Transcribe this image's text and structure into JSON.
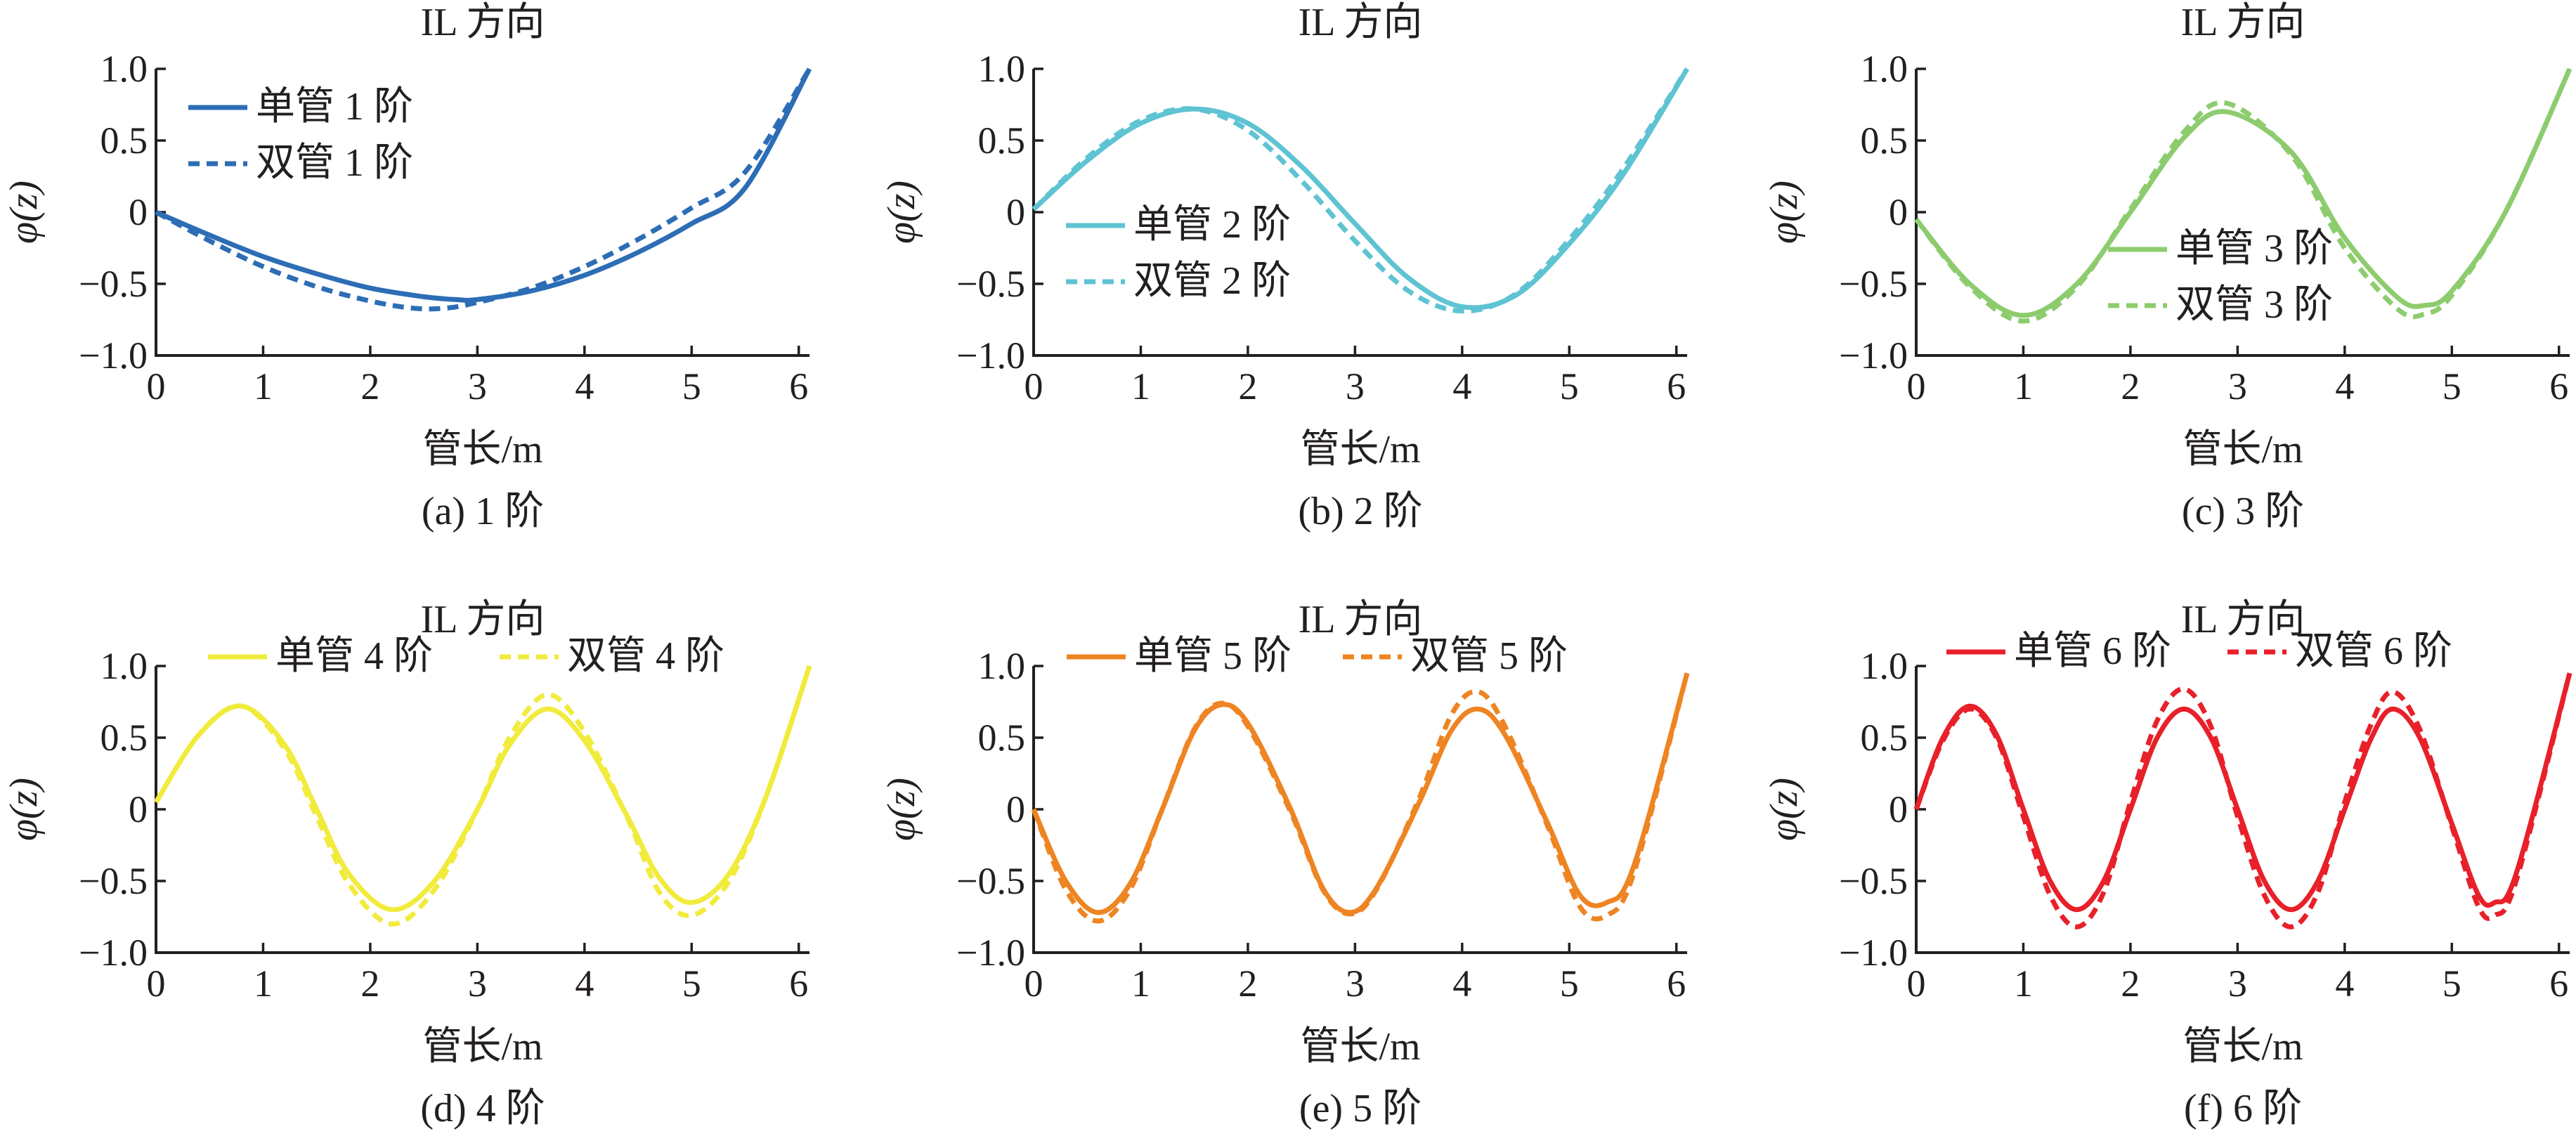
{
  "chart_data": [
    {
      "type": "line",
      "panel": "a",
      "title": "IL 方向",
      "xlabel": "管长/m",
      "ylabel": "φ(z)",
      "caption": "(a) 1 阶",
      "xlim": [
        0,
        6.1
      ],
      "ylim": [
        -1.0,
        1.0
      ],
      "xticks": [
        "0",
        "1",
        "2",
        "3",
        "4",
        "5",
        "6"
      ],
      "yticks": [
        "1.0",
        "0.5",
        "0",
        "−0.5",
        "−1.0"
      ],
      "color": "#2c6db5",
      "legend": "top-left",
      "series": [
        {
          "name": "单管 1 阶",
          "style": "solid",
          "x": [
            0,
            0.5,
            1.0,
            1.5,
            2.0,
            2.5,
            2.8,
            3.0,
            3.5,
            4.0,
            4.5,
            5.0,
            5.5,
            6.1
          ],
          "y": [
            0,
            -0.16,
            -0.31,
            -0.43,
            -0.53,
            -0.59,
            -0.61,
            -0.61,
            -0.55,
            -0.44,
            -0.28,
            -0.08,
            0.17,
            1.0
          ]
        },
        {
          "name": "双管 1 阶",
          "style": "dashed",
          "x": [
            0,
            0.5,
            1.0,
            1.5,
            2.0,
            2.4,
            2.7,
            3.0,
            3.5,
            4.0,
            4.5,
            5.0,
            5.5,
            6.1
          ],
          "y": [
            0,
            -0.2,
            -0.38,
            -0.52,
            -0.62,
            -0.67,
            -0.67,
            -0.63,
            -0.53,
            -0.38,
            -0.19,
            0.03,
            0.28,
            1.0
          ]
        }
      ]
    },
    {
      "type": "line",
      "panel": "b",
      "title": "IL 方向",
      "xlabel": "管长/m",
      "ylabel": "φ(z)",
      "caption": "(b) 2 阶",
      "xlim": [
        0,
        6.1
      ],
      "ylim": [
        -1.0,
        1.0
      ],
      "xticks": [
        "0",
        "1",
        "2",
        "3",
        "4",
        "5",
        "6"
      ],
      "yticks": [
        "1.0",
        "0.5",
        "0",
        "−0.5",
        "−1.0"
      ],
      "color": "#5ec3d2",
      "legend": "center-left",
      "series": [
        {
          "name": "单管 2 阶",
          "style": "solid",
          "x": [
            0,
            0.5,
            1.0,
            1.5,
            2.0,
            2.5,
            3.0,
            3.5,
            4.0,
            4.5,
            5.0,
            5.5,
            6.1
          ],
          "y": [
            0.02,
            0.36,
            0.62,
            0.72,
            0.62,
            0.32,
            -0.08,
            -0.46,
            -0.66,
            -0.58,
            -0.22,
            0.26,
            1.0
          ]
        },
        {
          "name": "双管 2 阶",
          "style": "dashed",
          "x": [
            0,
            0.5,
            1.0,
            1.5,
            2.0,
            2.5,
            3.0,
            3.5,
            4.0,
            4.5,
            5.0,
            5.5,
            6.1
          ],
          "y": [
            0.02,
            0.38,
            0.64,
            0.72,
            0.57,
            0.22,
            -0.2,
            -0.55,
            -0.69,
            -0.57,
            -0.19,
            0.3,
            1.0
          ]
        }
      ]
    },
    {
      "type": "line",
      "panel": "c",
      "title": "IL 方向",
      "xlabel": "管长/m",
      "ylabel": "φ(z)",
      "caption": "(c) 3 阶",
      "xlim": [
        0,
        6.1
      ],
      "ylim": [
        -1.0,
        1.0
      ],
      "xticks": [
        "0",
        "1",
        "2",
        "3",
        "4",
        "5",
        "6"
      ],
      "yticks": [
        "1.0",
        "0.5",
        "0",
        "−0.5",
        "−1.0"
      ],
      "color": "#8dcc6e",
      "legend": "center",
      "series": [
        {
          "name": "单管 3 阶",
          "style": "solid",
          "x": [
            0,
            0.5,
            1.0,
            1.5,
            2.0,
            2.5,
            2.9,
            3.5,
            4.0,
            4.5,
            4.75,
            5.0,
            5.5,
            6.1
          ],
          "y": [
            -0.05,
            -0.5,
            -0.72,
            -0.5,
            0.0,
            0.52,
            0.7,
            0.42,
            -0.18,
            -0.6,
            -0.65,
            -0.55,
            0.0,
            1.0
          ]
        },
        {
          "name": "双管 3 阶",
          "style": "dashed",
          "x": [
            0,
            0.5,
            1.0,
            1.5,
            2.0,
            2.5,
            2.9,
            3.5,
            4.0,
            4.5,
            4.75,
            5.0,
            5.5,
            6.1
          ],
          "y": [
            -0.05,
            -0.52,
            -0.76,
            -0.52,
            0.02,
            0.56,
            0.76,
            0.4,
            -0.25,
            -0.68,
            -0.71,
            -0.58,
            0.0,
            1.0
          ]
        }
      ]
    },
    {
      "type": "line",
      "panel": "d",
      "title": "IL 方向",
      "xlabel": "管长/m",
      "ylabel": "φ(z)",
      "caption": "(d) 4 阶",
      "xlim": [
        0,
        6.1
      ],
      "ylim": [
        -1.0,
        1.0
      ],
      "xticks": [
        "0",
        "1",
        "2",
        "3",
        "4",
        "5",
        "6"
      ],
      "yticks": [
        "1.0",
        "0.5",
        "0",
        "−0.5",
        "−1.0"
      ],
      "color": "#f1eb3c",
      "legend": "top",
      "series": [
        {
          "name": "单管 4 阶",
          "style": "solid",
          "x": [
            0,
            0.4,
            0.8,
            1.2,
            1.5,
            1.8,
            2.2,
            2.6,
            3.0,
            3.3,
            3.65,
            4.0,
            4.4,
            4.7,
            5.0,
            5.35,
            5.7,
            6.1
          ],
          "y": [
            0.05,
            0.52,
            0.72,
            0.45,
            0.0,
            -0.45,
            -0.7,
            -0.5,
            0.0,
            0.45,
            0.7,
            0.48,
            -0.05,
            -0.48,
            -0.65,
            -0.45,
            0.1,
            1.0
          ]
        },
        {
          "name": "双管 4 阶",
          "style": "dashed",
          "x": [
            0,
            0.4,
            0.8,
            1.2,
            1.5,
            1.8,
            2.2,
            2.6,
            3.0,
            3.3,
            3.65,
            4.0,
            4.4,
            4.7,
            5.0,
            5.35,
            5.7,
            6.1
          ],
          "y": [
            0.05,
            0.52,
            0.72,
            0.42,
            -0.05,
            -0.52,
            -0.8,
            -0.56,
            0.0,
            0.5,
            0.8,
            0.54,
            -0.06,
            -0.58,
            -0.74,
            -0.5,
            0.1,
            1.0
          ]
        }
      ]
    },
    {
      "type": "line",
      "panel": "e",
      "title": "IL 方向",
      "xlabel": "管长/m",
      "ylabel": "φ(z)",
      "caption": "(e) 5 阶",
      "xlim": [
        0,
        6.1
      ],
      "ylim": [
        -1.0,
        1.0
      ],
      "xticks": [
        "0",
        "1",
        "2",
        "3",
        "4",
        "5",
        "6"
      ],
      "yticks": [
        "1.0",
        "0.5",
        "0",
        "−0.5",
        "−1.0"
      ],
      "color": "#ee8422",
      "legend": "top",
      "series": [
        {
          "name": "单管 5 阶",
          "style": "solid",
          "x": [
            0,
            0.3,
            0.6,
            0.9,
            1.2,
            1.5,
            1.75,
            2.0,
            2.4,
            2.7,
            2.95,
            3.2,
            3.6,
            3.9,
            4.15,
            4.4,
            4.8,
            5.1,
            5.35,
            5.6,
            6.1
          ],
          "y": [
            0.0,
            -0.5,
            -0.72,
            -0.52,
            0.0,
            0.55,
            0.73,
            0.6,
            0.0,
            -0.55,
            -0.72,
            -0.55,
            0.05,
            0.55,
            0.7,
            0.52,
            -0.1,
            -0.6,
            -0.65,
            -0.4,
            0.95
          ]
        },
        {
          "name": "双管 5 阶",
          "style": "dashed",
          "x": [
            0,
            0.3,
            0.6,
            0.9,
            1.2,
            1.5,
            1.75,
            2.0,
            2.4,
            2.7,
            2.95,
            3.2,
            3.6,
            3.9,
            4.15,
            4.4,
            4.8,
            5.1,
            5.35,
            5.6,
            6.1
          ],
          "y": [
            0.0,
            -0.56,
            -0.78,
            -0.56,
            0.0,
            0.56,
            0.74,
            0.58,
            -0.02,
            -0.56,
            -0.73,
            -0.56,
            0.08,
            0.66,
            0.82,
            0.58,
            -0.12,
            -0.68,
            -0.74,
            -0.45,
            0.95
          ]
        }
      ]
    },
    {
      "type": "line",
      "panel": "f",
      "title": "IL 方向",
      "xlabel": "管长/m",
      "ylabel": "φ(z)",
      "caption": "(f) 6 阶",
      "xlim": [
        0,
        6.1
      ],
      "ylim": [
        -1.0,
        1.0
      ],
      "xticks": [
        "0",
        "1",
        "2",
        "3",
        "4",
        "5",
        "6"
      ],
      "yticks": [
        "1.0",
        "0.5",
        "0",
        "−0.5",
        "−1.0"
      ],
      "color": "#e8202a",
      "legend": "top",
      "series": [
        {
          "name": "单管 6 阶",
          "style": "solid",
          "x": [
            0,
            0.25,
            0.5,
            0.75,
            1.0,
            1.25,
            1.5,
            1.75,
            2.0,
            2.25,
            2.5,
            2.75,
            3.0,
            3.25,
            3.5,
            3.75,
            4.0,
            4.25,
            4.45,
            4.7,
            5.0,
            5.25,
            5.4,
            5.6,
            6.1
          ],
          "y": [
            0.0,
            0.5,
            0.72,
            0.52,
            0.0,
            -0.5,
            -0.7,
            -0.5,
            0.0,
            0.5,
            0.7,
            0.5,
            0.0,
            -0.5,
            -0.7,
            -0.5,
            0.0,
            0.5,
            0.7,
            0.5,
            -0.1,
            -0.6,
            -0.65,
            -0.45,
            0.95
          ]
        },
        {
          "name": "双管 6 阶",
          "style": "dashed",
          "x": [
            0,
            0.25,
            0.5,
            0.75,
            1.0,
            1.25,
            1.5,
            1.75,
            2.0,
            2.25,
            2.5,
            2.75,
            3.0,
            3.25,
            3.5,
            3.75,
            4.0,
            4.25,
            4.45,
            4.7,
            5.0,
            5.25,
            5.4,
            5.6,
            6.1
          ],
          "y": [
            0.0,
            0.48,
            0.7,
            0.5,
            -0.05,
            -0.6,
            -0.82,
            -0.58,
            0.05,
            0.62,
            0.84,
            0.58,
            -0.05,
            -0.6,
            -0.82,
            -0.58,
            0.05,
            0.6,
            0.82,
            0.56,
            -0.12,
            -0.68,
            -0.74,
            -0.5,
            0.95
          ]
        }
      ]
    }
  ]
}
